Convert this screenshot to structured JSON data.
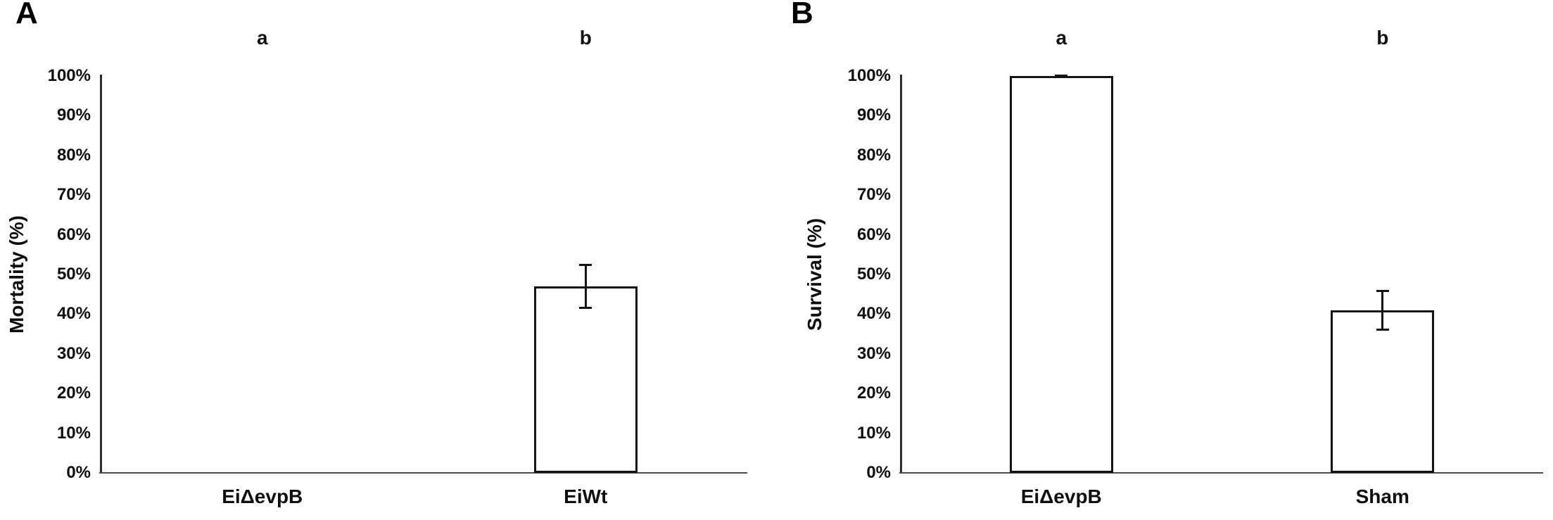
{
  "figure": {
    "background": "#ffffff",
    "bar_fill": "#ffffff",
    "bar_border_color": "#141414",
    "y_axis_color": "#2e2e2e",
    "x_axis_color": "#4c4c4c",
    "text_color": "#0f0f0f"
  },
  "chart_data": [
    {
      "type": "bar",
      "panel_letter": "A",
      "title": "",
      "xlabel": "",
      "ylabel": "Mortality (%)",
      "ylim": [
        0,
        100
      ],
      "grid": false,
      "legend": null,
      "ytick_values": [
        0,
        10,
        20,
        30,
        40,
        50,
        60,
        70,
        80,
        90,
        100
      ],
      "ytick_labels": [
        "0%",
        "10%",
        "20%",
        "30%",
        "40%",
        "50%",
        "60%",
        "70%",
        "80%",
        "90%",
        "100%"
      ],
      "categories": [
        "EiΔevpB",
        "EiWt"
      ],
      "values": [
        0,
        47
      ],
      "error_plus": [
        null,
        5.5
      ],
      "error_minus": [
        null,
        5.5
      ],
      "sig_letters": [
        "a",
        "b"
      ]
    },
    {
      "type": "bar",
      "panel_letter": "B",
      "title": "",
      "xlabel": "",
      "ylabel": "Survival (%)",
      "ylim": [
        0,
        100
      ],
      "grid": false,
      "legend": null,
      "ytick_values": [
        0,
        10,
        20,
        30,
        40,
        50,
        60,
        70,
        80,
        90,
        100
      ],
      "ytick_labels": [
        "0%",
        "10%",
        "20%",
        "30%",
        "40%",
        "50%",
        "60%",
        "70%",
        "80%",
        "90%",
        "100%"
      ],
      "categories": [
        "EiΔevpB",
        "Sham"
      ],
      "values": [
        100,
        41
      ],
      "error_plus": [
        0,
        5
      ],
      "error_minus": [
        0,
        5
      ],
      "sig_letters": [
        "a",
        "b"
      ]
    }
  ]
}
